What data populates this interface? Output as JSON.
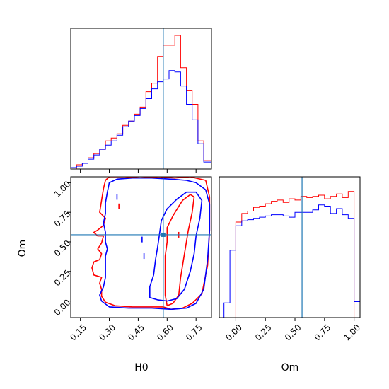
{
  "chart_data": {
    "type": "corner",
    "parameters": [
      "H0",
      "Om"
    ],
    "truth": {
      "H0": 0.58,
      "Om": 0.56
    },
    "colors": {
      "red_chain": "#ff0000",
      "blue_chain": "#0000ff",
      "truth_line": "#1f77b4"
    },
    "panels": [
      {
        "id": "hist-h0",
        "type": "histogram",
        "xlim": [
          0.1,
          0.83
        ],
        "x_ticks": [
          0.15,
          0.3,
          0.45,
          0.6,
          0.75
        ],
        "bin_edges": [
          0.1,
          0.13,
          0.16,
          0.19,
          0.22,
          0.25,
          0.28,
          0.31,
          0.34,
          0.37,
          0.4,
          0.43,
          0.46,
          0.49,
          0.52,
          0.55,
          0.58,
          0.61,
          0.64,
          0.67,
          0.7,
          0.73,
          0.76,
          0.79,
          0.83
        ],
        "series": [
          {
            "name": "red",
            "color": "#ff0000",
            "values": [
              0.0,
              0.03,
              0.04,
              0.08,
              0.11,
              0.14,
              0.2,
              0.22,
              0.25,
              0.31,
              0.34,
              0.39,
              0.44,
              0.55,
              0.61,
              0.8,
              0.88,
              0.88,
              0.95,
              0.72,
              0.56,
              0.46,
              0.2,
              0.06
            ]
          },
          {
            "name": "blue",
            "color": "#0000ff",
            "values": [
              0.01,
              0.02,
              0.04,
              0.07,
              0.1,
              0.14,
              0.17,
              0.2,
              0.24,
              0.3,
              0.34,
              0.38,
              0.43,
              0.5,
              0.57,
              0.62,
              0.64,
              0.7,
              0.69,
              0.59,
              0.46,
              0.35,
              0.18,
              0.05
            ]
          }
        ]
      },
      {
        "id": "contour-h0-om",
        "type": "contour",
        "xlim": [
          0.1,
          0.83
        ],
        "ylim": [
          -0.14,
          1.05
        ],
        "x_ticks": [
          0.15,
          0.3,
          0.45,
          0.6,
          0.75
        ],
        "y_ticks": [
          0.0,
          0.25,
          0.5,
          0.75,
          1.0
        ],
        "xlabel": "H0",
        "ylabel": "Om",
        "contours": [
          {
            "chain": "red",
            "color": "#ff0000",
            "points": [
              [
                0.26,
                0.04
              ],
              [
                0.28,
                -0.01
              ],
              [
                0.33,
                -0.04
              ],
              [
                0.42,
                -0.05
              ],
              [
                0.52,
                -0.05
              ],
              [
                0.58,
                -0.05
              ],
              [
                0.62,
                -0.07
              ],
              [
                0.68,
                -0.06
              ],
              [
                0.73,
                -0.02
              ],
              [
                0.78,
                0.06
              ],
              [
                0.81,
                0.3
              ],
              [
                0.82,
                0.6
              ],
              [
                0.82,
                0.88
              ],
              [
                0.8,
                1.02
              ],
              [
                0.72,
                1.05
              ],
              [
                0.64,
                1.04
              ],
              [
                0.56,
                1.05
              ],
              [
                0.46,
                1.04
              ],
              [
                0.38,
                1.05
              ],
              [
                0.3,
                1.05
              ],
              [
                0.28,
                1.02
              ],
              [
                0.27,
                0.95
              ],
              [
                0.26,
                0.85
              ],
              [
                0.25,
                0.75
              ],
              [
                0.28,
                0.7
              ],
              [
                0.27,
                0.64
              ],
              [
                0.24,
                0.6
              ],
              [
                0.22,
                0.58
              ],
              [
                0.24,
                0.55
              ],
              [
                0.27,
                0.55
              ],
              [
                0.26,
                0.49
              ],
              [
                0.24,
                0.44
              ],
              [
                0.26,
                0.4
              ],
              [
                0.25,
                0.35
              ],
              [
                0.22,
                0.33
              ],
              [
                0.21,
                0.28
              ],
              [
                0.22,
                0.22
              ],
              [
                0.26,
                0.2
              ],
              [
                0.25,
                0.15
              ],
              [
                0.26,
                0.1
              ],
              [
                0.26,
                0.04
              ]
            ]
          },
          {
            "chain": "red",
            "color": "#ff0000",
            "points": [
              [
                0.6,
                -0.04
              ],
              [
                0.63,
                -0.02
              ],
              [
                0.66,
                0.05
              ],
              [
                0.67,
                0.2
              ],
              [
                0.69,
                0.4
              ],
              [
                0.71,
                0.6
              ],
              [
                0.73,
                0.75
              ],
              [
                0.74,
                0.88
              ],
              [
                0.72,
                0.9
              ],
              [
                0.68,
                0.85
              ],
              [
                0.66,
                0.8
              ],
              [
                0.63,
                0.72
              ],
              [
                0.6,
                0.62
              ],
              [
                0.6,
                0.5
              ],
              [
                0.59,
                0.38
              ],
              [
                0.59,
                0.2
              ],
              [
                0.59,
                0.05
              ],
              [
                0.6,
                -0.04
              ]
            ]
          },
          {
            "chain": "blue",
            "color": "#0000ff",
            "points": [
              [
                0.26,
                0.0
              ],
              [
                0.3,
                -0.05
              ],
              [
                0.4,
                -0.06
              ],
              [
                0.52,
                -0.06
              ],
              [
                0.62,
                -0.07
              ],
              [
                0.7,
                -0.06
              ],
              [
                0.75,
                -0.02
              ],
              [
                0.79,
                0.1
              ],
              [
                0.81,
                0.35
              ],
              [
                0.82,
                0.6
              ],
              [
                0.82,
                0.82
              ],
              [
                0.8,
                0.94
              ],
              [
                0.75,
                1.0
              ],
              [
                0.7,
                1.02
              ],
              [
                0.62,
                1.03
              ],
              [
                0.52,
                1.04
              ],
              [
                0.42,
                1.04
              ],
              [
                0.34,
                1.03
              ],
              [
                0.3,
                1.0
              ],
              [
                0.29,
                0.92
              ],
              [
                0.28,
                0.83
              ],
              [
                0.28,
                0.74
              ],
              [
                0.27,
                0.66
              ],
              [
                0.28,
                0.58
              ],
              [
                0.28,
                0.5
              ],
              [
                0.29,
                0.44
              ],
              [
                0.28,
                0.38
              ],
              [
                0.28,
                0.3
              ],
              [
                0.28,
                0.2
              ],
              [
                0.27,
                0.12
              ],
              [
                0.25,
                0.05
              ],
              [
                0.26,
                0.0
              ]
            ]
          },
          {
            "chain": "blue",
            "color": "#0000ff",
            "points": [
              [
                0.51,
                0.03
              ],
              [
                0.55,
                0.01
              ],
              [
                0.6,
                0.0
              ],
              [
                0.65,
                0.02
              ],
              [
                0.69,
                0.1
              ],
              [
                0.72,
                0.25
              ],
              [
                0.74,
                0.4
              ],
              [
                0.75,
                0.55
              ],
              [
                0.77,
                0.7
              ],
              [
                0.78,
                0.85
              ],
              [
                0.75,
                0.92
              ],
              [
                0.7,
                0.92
              ],
              [
                0.65,
                0.86
              ],
              [
                0.6,
                0.78
              ],
              [
                0.57,
                0.68
              ],
              [
                0.56,
                0.56
              ],
              [
                0.55,
                0.45
              ],
              [
                0.54,
                0.35
              ],
              [
                0.53,
                0.22
              ],
              [
                0.51,
                0.12
              ],
              [
                0.51,
                0.03
              ]
            ]
          }
        ],
        "markers": [
          {
            "chain": "red",
            "color": "#ff0000",
            "x": 0.35,
            "y": 0.8
          },
          {
            "chain": "blue",
            "color": "#0000ff",
            "x": 0.34,
            "y": 0.88
          },
          {
            "chain": "blue",
            "color": "#0000ff",
            "x": 0.47,
            "y": 0.52
          },
          {
            "chain": "blue",
            "color": "#0000ff",
            "x": 0.48,
            "y": 0.38
          },
          {
            "chain": "red",
            "color": "#ff0000",
            "x": 0.66,
            "y": 0.56
          }
        ]
      },
      {
        "id": "hist-om",
        "type": "histogram",
        "xlim": [
          -0.14,
          1.05
        ],
        "x_ticks": [
          0.0,
          0.25,
          0.5,
          0.75,
          1.0
        ],
        "xlabel": "Om",
        "bin_edges": [
          -0.14,
          -0.1,
          -0.05,
          0.0,
          0.05,
          0.1,
          0.15,
          0.2,
          0.25,
          0.3,
          0.35,
          0.4,
          0.45,
          0.5,
          0.55,
          0.6,
          0.65,
          0.7,
          0.75,
          0.8,
          0.85,
          0.9,
          0.95,
          1.0,
          1.05
        ],
        "series": [
          {
            "name": "red",
            "color": "#ff0000",
            "values": [
              0,
              0,
              0,
              0.78,
              0.85,
              0.87,
              0.9,
              0.91,
              0.93,
              0.95,
              0.96,
              0.94,
              0.97,
              0.96,
              0.99,
              0.98,
              0.99,
              1.0,
              0.97,
              0.99,
              1.01,
              0.98,
              1.03,
              0
            ]
          },
          {
            "name": "blue",
            "color": "#0000ff",
            "values": [
              0,
              0.12,
              0.55,
              0.75,
              0.79,
              0.8,
              0.81,
              0.82,
              0.83,
              0.84,
              0.84,
              0.83,
              0.82,
              0.86,
              0.86,
              0.86,
              0.88,
              0.92,
              0.91,
              0.85,
              0.89,
              0.84,
              0.81,
              0.13
            ]
          }
        ]
      }
    ]
  }
}
